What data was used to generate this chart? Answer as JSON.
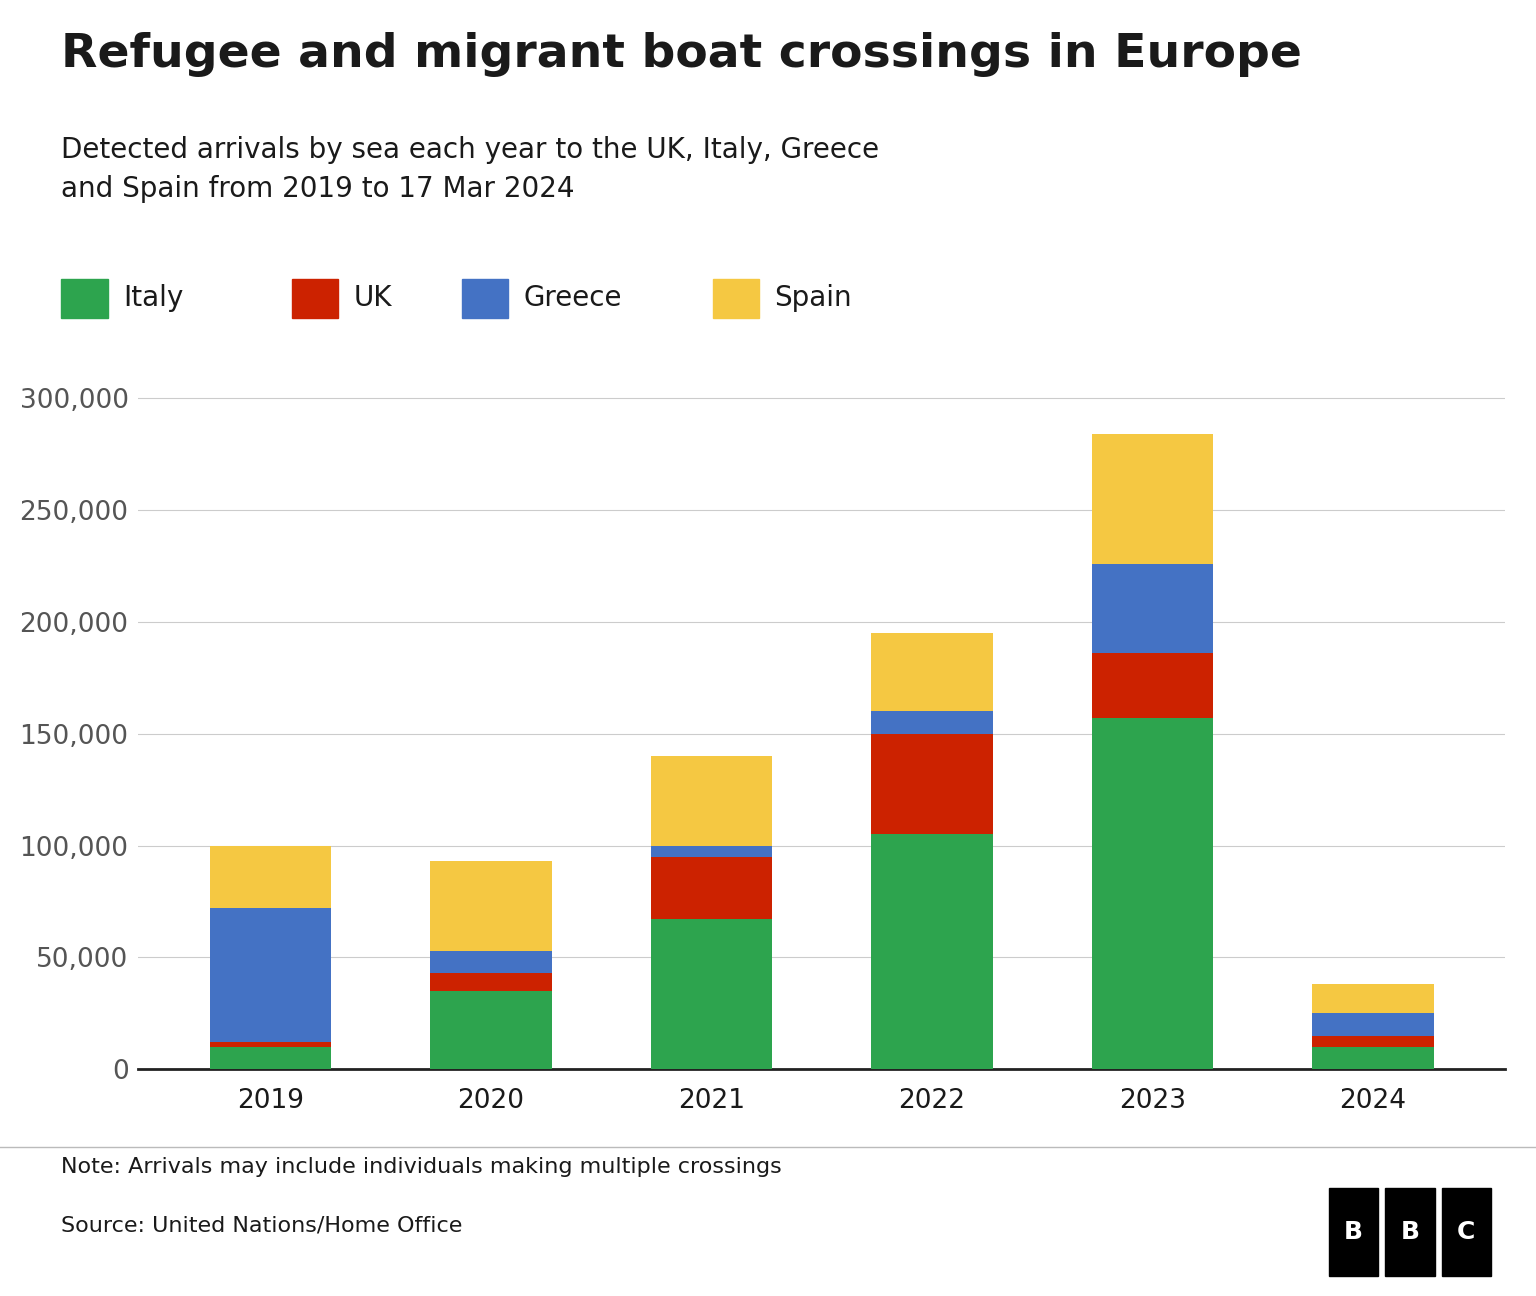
{
  "title": "Refugee and migrant boat crossings in Europe",
  "subtitle": "Detected arrivals by sea each year to the UK, Italy, Greece\nand Spain from 2019 to 17 Mar 2024",
  "years": [
    "2019",
    "2020",
    "2021",
    "2022",
    "2023",
    "2024"
  ],
  "italy": [
    10000,
    35000,
    67000,
    105000,
    157000,
    10000
  ],
  "uk": [
    2000,
    8000,
    28000,
    45000,
    29000,
    5000
  ],
  "greece": [
    60000,
    10000,
    5000,
    10000,
    40000,
    10000
  ],
  "spain": [
    28000,
    40000,
    40000,
    35000,
    58000,
    13000
  ],
  "colors": {
    "italy": "#2da44e",
    "uk": "#cc2200",
    "greece": "#4472c4",
    "spain": "#f5c842"
  },
  "ylim": [
    0,
    310000
  ],
  "yticks": [
    0,
    50000,
    100000,
    150000,
    200000,
    250000,
    300000
  ],
  "ytick_labels": [
    "0",
    "50,000",
    "100,000",
    "150,000",
    "200,000",
    "250,000",
    "300,000"
  ],
  "note": "Note: Arrivals may include individuals making multiple crossings",
  "source": "Source: United Nations/Home Office",
  "bg_color": "#ffffff",
  "text_color": "#1a1a1a",
  "grid_color": "#cccccc",
  "bar_width": 0.55
}
